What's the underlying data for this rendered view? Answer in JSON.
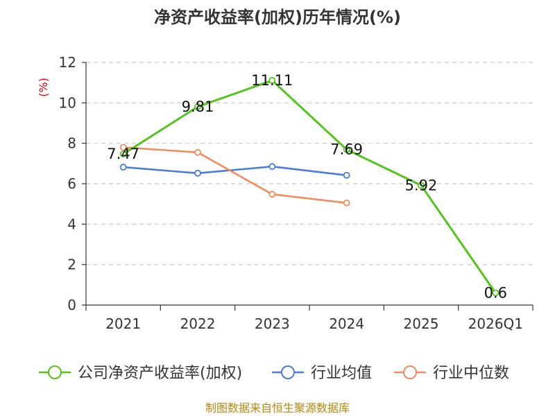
{
  "chart_data": {
    "type": "line",
    "title": "净资产收益率(加权)历年情况(%)",
    "xlabel": "",
    "ylabel": "(%)",
    "categories": [
      "2021",
      "2022",
      "2023",
      "2024",
      "2025",
      "2026Q1"
    ],
    "ylim": [
      0,
      12
    ],
    "yticks": [
      0,
      2,
      4,
      6,
      8,
      10,
      12
    ],
    "grid": true,
    "legend_position": "bottom",
    "series": [
      {
        "name": "公司净资产收益率(加权)",
        "color": "#52c41a",
        "values": [
          7.47,
          9.81,
          11.11,
          7.69,
          5.92,
          0.6
        ],
        "labels": [
          "7.47",
          "9.81",
          "11.11",
          "7.69",
          "5.92",
          "0.6"
        ]
      },
      {
        "name": "行业均值",
        "color": "#4a7bd8",
        "values": [
          6.82,
          6.52,
          6.85,
          6.42,
          null,
          null
        ]
      },
      {
        "name": "行业中位数",
        "color": "#f28b5b",
        "values": [
          7.8,
          7.55,
          5.48,
          5.05,
          null,
          null
        ]
      }
    ]
  },
  "source": "制图数据来自恒生聚源数据库"
}
